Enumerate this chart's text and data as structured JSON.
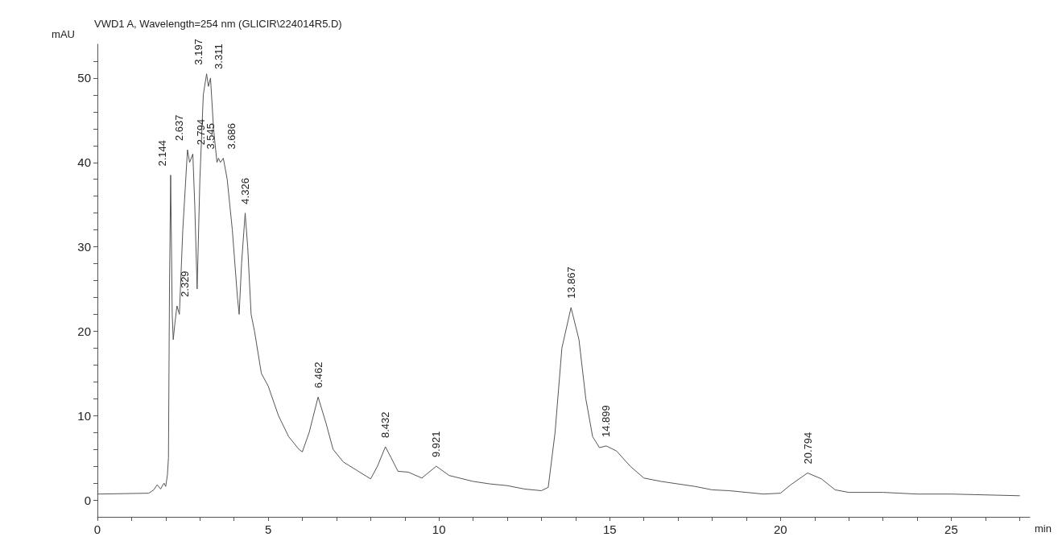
{
  "chart_data": {
    "type": "line",
    "title": "VWD1 A, Wavelength=254 nm (GLICIR\\224014R5.D)",
    "xlabel": "min",
    "ylabel": "mAU",
    "x": [
      0,
      1.5,
      1.65,
      1.75,
      1.85,
      1.95,
      2.0,
      2.05,
      2.08,
      2.11,
      2.144,
      2.19,
      2.22,
      2.27,
      2.329,
      2.4,
      2.5,
      2.637,
      2.7,
      2.794,
      2.85,
      2.92,
      3.0,
      3.1,
      3.197,
      3.25,
      3.311,
      3.4,
      3.5,
      3.545,
      3.6,
      3.686,
      3.8,
      3.95,
      4.1,
      4.15,
      4.22,
      4.326,
      4.4,
      4.5,
      4.6,
      4.8,
      5.0,
      5.3,
      5.6,
      5.9,
      6.0,
      6.2,
      6.462,
      6.7,
      6.9,
      7.2,
      7.6,
      8.0,
      8.2,
      8.432,
      8.6,
      8.8,
      9.1,
      9.5,
      9.921,
      10.3,
      11,
      11.5,
      12,
      12.5,
      13.0,
      13.2,
      13.4,
      13.6,
      13.867,
      14.1,
      14.3,
      14.5,
      14.7,
      14.899,
      15.2,
      15.6,
      16,
      16.5,
      17,
      17.5,
      18,
      18.5,
      19,
      19.5,
      20,
      20.3,
      20.794,
      21.2,
      21.6,
      22,
      23,
      24,
      25,
      26,
      27
    ],
    "series": [
      {
        "color": "#555555",
        "values": [
          0.7,
          0.8,
          1.2,
          1.8,
          1.3,
          2,
          1.6,
          3,
          5,
          25,
          38.5,
          22,
          19,
          21,
          23,
          22,
          32,
          41.5,
          40,
          41,
          35,
          25,
          38,
          48,
          50.5,
          49,
          50,
          44,
          40,
          40.5,
          40,
          40.5,
          38,
          32,
          24,
          22,
          28,
          34,
          30,
          22,
          20,
          15,
          13.5,
          10,
          7.5,
          6,
          5.7,
          8,
          12.2,
          9,
          6,
          4.5,
          3.5,
          2.5,
          4,
          6.3,
          5,
          3.4,
          3.3,
          2.6,
          4.0,
          2.9,
          2.2,
          1.9,
          1.7,
          1.3,
          1.1,
          1.5,
          8,
          18,
          22.8,
          19,
          12,
          7.5,
          6.2,
          6.4,
          5.8,
          4,
          2.6,
          2.2,
          1.9,
          1.6,
          1.2,
          1.1,
          0.9,
          0.7,
          0.8,
          1.8,
          3.2,
          2.5,
          1.2,
          0.9,
          0.9,
          0.7,
          0.7,
          0.6,
          0.5
        ]
      }
    ],
    "xlim": [
      0,
      27.3
    ],
    "ylim": [
      -2,
      54
    ],
    "xticks": [
      0,
      {
        "value": 1,
        "label": null
      },
      {
        "value": 2,
        "label": null
      },
      {
        "value": 3,
        "label": null
      },
      {
        "value": 4,
        "label": null
      },
      5,
      {
        "value": 6,
        "label": null
      },
      {
        "value": 7,
        "label": null
      },
      {
        "value": 8,
        "label": null
      },
      {
        "value": 9,
        "label": null
      },
      10,
      {
        "value": 11,
        "label": null
      },
      {
        "value": 12,
        "label": null
      },
      {
        "value": 13,
        "label": null
      },
      {
        "value": 14,
        "label": null
      },
      15,
      {
        "value": 16,
        "label": null
      },
      {
        "value": 17,
        "label": null
      },
      {
        "value": 18,
        "label": null
      },
      {
        "value": 19,
        "label": null
      },
      20,
      {
        "value": 21,
        "label": null
      },
      {
        "value": 22,
        "label": null
      },
      {
        "value": 23,
        "label": null
      },
      {
        "value": 24,
        "label": null
      },
      25,
      {
        "value": 26,
        "label": null
      },
      {
        "value": 27,
        "label": null
      }
    ],
    "yticks": [
      0,
      {
        "value": 2,
        "label": null
      },
      {
        "value": 4,
        "label": null
      },
      {
        "value": 6,
        "label": null
      },
      {
        "value": 8,
        "label": null
      },
      10,
      {
        "value": 12,
        "label": null
      },
      {
        "value": 14,
        "label": null
      },
      {
        "value": 16,
        "label": null
      },
      {
        "value": 18,
        "label": null
      },
      20,
      {
        "value": 22,
        "label": null
      },
      {
        "value": 24,
        "label": null
      },
      {
        "value": 26,
        "label": null
      },
      {
        "value": 28,
        "label": null
      },
      30,
      {
        "value": 32,
        "label": null
      },
      {
        "value": 34,
        "label": null
      },
      {
        "value": 36,
        "label": null
      },
      {
        "value": 38,
        "label": null
      },
      40,
      {
        "value": 42,
        "label": null
      },
      {
        "value": 44,
        "label": null
      },
      {
        "value": 46,
        "label": null
      },
      {
        "value": 48,
        "label": null
      },
      50,
      {
        "value": 52,
        "label": null
      }
    ],
    "grid": false,
    "marker": "none",
    "line_style": "solid",
    "annotations": [
      {
        "text": "2.144",
        "x": 2.144,
        "y": 38.5
      },
      {
        "text": "2.329",
        "x": 2.329,
        "y": 23
      },
      {
        "text": "2.637",
        "x": 2.637,
        "y": 41.5
      },
      {
        "text": "2.794",
        "x": 2.794,
        "y": 41
      },
      {
        "text": "3.197",
        "x": 3.197,
        "y": 50.5
      },
      {
        "text": "3.311",
        "x": 3.311,
        "y": 50
      },
      {
        "text": "3.545",
        "x": 3.545,
        "y": 40.5
      },
      {
        "text": "3.686",
        "x": 3.686,
        "y": 40.5
      },
      {
        "text": "4.326",
        "x": 4.326,
        "y": 34
      },
      {
        "text": "6.462",
        "x": 6.462,
        "y": 12.2
      },
      {
        "text": "8.432",
        "x": 8.432,
        "y": 6.3
      },
      {
        "text": "9.921",
        "x": 9.921,
        "y": 4.0
      },
      {
        "text": "13.867",
        "x": 13.867,
        "y": 22.8
      },
      {
        "text": "14.899",
        "x": 14.899,
        "y": 6.4
      },
      {
        "text": "20.794",
        "x": 20.794,
        "y": 3.2
      }
    ]
  }
}
